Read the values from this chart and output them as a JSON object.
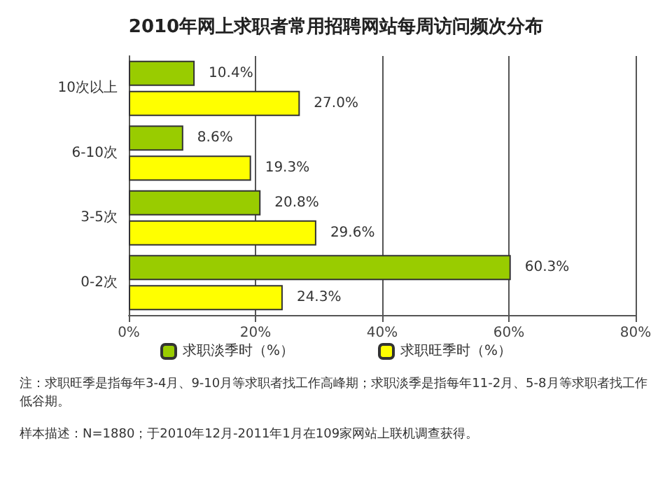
{
  "chart_data": {
    "type": "bar",
    "orientation": "horizontal",
    "title": "2010年网上求职者常用招聘网站每周访问频次分布",
    "categories": [
      "10次以上",
      "6-10次",
      "3-5次",
      "0-2次"
    ],
    "series": [
      {
        "name": "求职淡季时（%）",
        "color": "#99cc00",
        "values": [
          10.4,
          8.6,
          20.8,
          60.3
        ],
        "value_labels": [
          "10.4%",
          "8.6%",
          "20.8%",
          "60.3%"
        ]
      },
      {
        "name": "求职旺季时（%）",
        "color": "#ffff00",
        "values": [
          27.0,
          19.3,
          29.6,
          24.3
        ],
        "value_labels": [
          "27.0%",
          "19.3%",
          "29.6%",
          "24.3%"
        ]
      }
    ],
    "xlim": [
      0,
      80
    ],
    "xticks": [
      {
        "value": 0,
        "label": "0%"
      },
      {
        "value": 20,
        "label": "20%"
      },
      {
        "value": 40,
        "label": "40%"
      },
      {
        "value": 60,
        "label": "60%"
      },
      {
        "value": 80,
        "label": "80%"
      }
    ],
    "grid": "x",
    "legend": "bottom",
    "annotations": [
      "注：求职旺季是指每年3-4月、9-10月等求职者找工作高峰期；求职淡季是指每年11-2月、5-8月等求职者找工作低谷期。",
      "样本描述：N=1880；于2010年12月-2011年1月在109家网站上联机调查获得。"
    ]
  }
}
